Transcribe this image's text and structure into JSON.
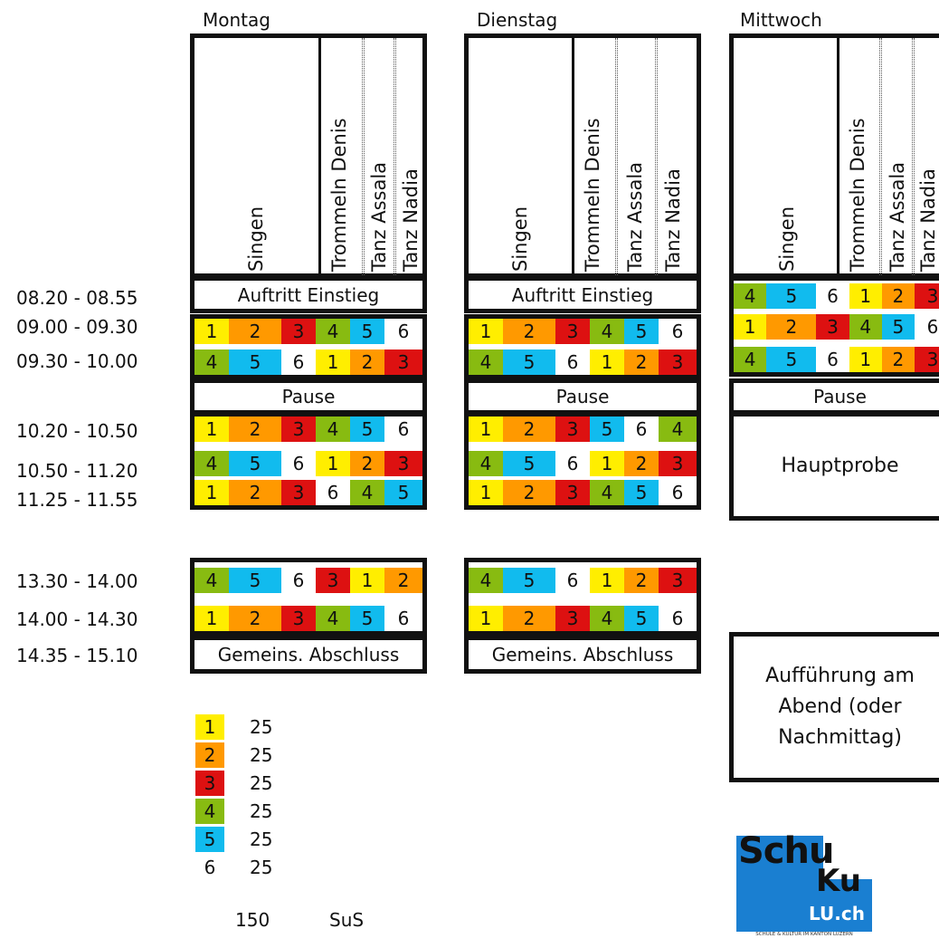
{
  "days": {
    "montag": "Montag",
    "dienstag": "Dienstag",
    "mittwoch": "Mittwoch"
  },
  "header_labels": {
    "singen": "Singen",
    "trommeln": "Trommeln Denis",
    "tanz_assala": "Tanz Assala",
    "tanz_nadia": "Tanz Nadia"
  },
  "times": [
    "08.20 - 08.55",
    "09.00 - 09.30",
    "09.30 - 10.00",
    "10.20 - 10.50",
    "10.50 - 11.20",
    "11.25 - 11.55",
    "13.30 - 14.00",
    "14.00 - 14.30",
    "14.35 - 15.10"
  ],
  "bands": {
    "auftritt": "Auftritt Einstieg",
    "pause": "Pause",
    "abschluss": "Gemeins. Abschluss",
    "hauptprobe": "Hauptprobe",
    "auffuehrung": "Aufführung am Abend (oder Nachmittag)"
  },
  "colors": {
    "1": "#ffee00",
    "2": "#ff9900",
    "3": "#dd1111",
    "4": "#88bb11",
    "5": "#11bbee",
    "6": "#ffffff"
  },
  "schedule": {
    "montag": {
      "r0900": [
        "1",
        "2",
        "3",
        "4",
        "5",
        "6"
      ],
      "r0930": [
        "4",
        "5",
        "6",
        "1",
        "2",
        "3"
      ],
      "r1020": [
        "1",
        "2",
        "3",
        "4",
        "5",
        "6"
      ],
      "r1050": [
        "4",
        "5",
        "6",
        "1",
        "2",
        "3"
      ],
      "r1125": [
        "1",
        "2",
        "3",
        "6",
        "4",
        "5"
      ],
      "r1330": [
        "4",
        "5",
        "6",
        "3",
        "1",
        "2"
      ],
      "r1400": [
        "1",
        "2",
        "3",
        "4",
        "5",
        "6"
      ]
    },
    "dienstag": {
      "r0900": [
        "1",
        "2",
        "3",
        "4",
        "5",
        "6"
      ],
      "r0930": [
        "4",
        "5",
        "6",
        "1",
        "2",
        "3"
      ],
      "r1020": [
        "1",
        "2",
        "3",
        "5",
        "6",
        "4"
      ],
      "r1050": [
        "4",
        "5",
        "6",
        "1",
        "2",
        "3"
      ],
      "r1125": [
        "1",
        "2",
        "3",
        "4",
        "5",
        "6"
      ],
      "r1330": [
        "4",
        "5",
        "6",
        "1",
        "2",
        "3"
      ],
      "r1400": [
        "1",
        "2",
        "3",
        "4",
        "5",
        "6"
      ]
    },
    "mittwoch": {
      "r0820": [
        "4",
        "5",
        "6",
        "1",
        "2",
        "3"
      ],
      "r0900": [
        "1",
        "2",
        "3",
        "4",
        "5",
        "6"
      ],
      "r0930": [
        "4",
        "5",
        "6",
        "1",
        "2",
        "3"
      ]
    }
  },
  "legend": {
    "groups": [
      "1",
      "2",
      "3",
      "4",
      "5",
      "6"
    ],
    "counts": [
      "25",
      "25",
      "25",
      "25",
      "25",
      "25"
    ],
    "total": "150",
    "unit": "SuS"
  },
  "logo": {
    "line1": "Schu",
    "line2": "Ku",
    "line3": "LU.ch",
    "tagline": "SCHULE & KULTUR IM KANTON LUZERN"
  }
}
